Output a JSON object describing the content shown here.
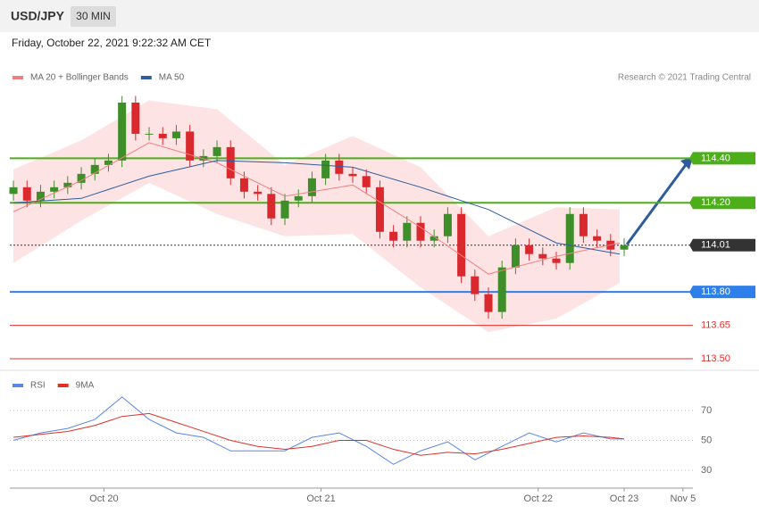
{
  "header": {
    "symbol": "USD/JPY",
    "interval": "30 MIN",
    "timestamp": "Friday, October 22, 2021 9:22:32 AM CET",
    "credit": "Research © 2021 Trading Central"
  },
  "chart_data": [
    {
      "type": "candlestick",
      "x": [
        0,
        3,
        6,
        9,
        12,
        15,
        18,
        21,
        24,
        27,
        30,
        33,
        36,
        39,
        42,
        45,
        48,
        51,
        54,
        57,
        60,
        63,
        66,
        69,
        72,
        75,
        78,
        81,
        84,
        87,
        90,
        93,
        96,
        99,
        102,
        105,
        108,
        111,
        114,
        117,
        120,
        123,
        126,
        129,
        132,
        135
      ],
      "open": [
        114.24,
        114.27,
        114.21,
        114.25,
        114.27,
        114.29,
        114.33,
        114.37,
        114.39,
        114.65,
        114.51,
        114.51,
        114.49,
        114.52,
        114.39,
        114.41,
        114.45,
        114.31,
        114.25,
        114.24,
        114.13,
        114.21,
        114.23,
        114.31,
        114.39,
        114.33,
        114.32,
        114.27,
        114.07,
        114.03,
        114.11,
        114.03,
        114.05,
        114.15,
        113.87,
        113.79,
        113.71,
        113.91,
        114.01,
        113.97,
        113.95,
        113.93,
        114.15,
        114.05,
        114.03,
        113.99
      ],
      "high": [
        114.3,
        114.3,
        114.28,
        114.3,
        114.32,
        114.36,
        114.4,
        114.42,
        114.68,
        114.68,
        114.54,
        114.54,
        114.55,
        114.55,
        114.44,
        114.48,
        114.48,
        114.34,
        114.28,
        114.27,
        114.24,
        114.26,
        114.34,
        114.42,
        114.42,
        114.36,
        114.35,
        114.3,
        114.1,
        114.14,
        114.14,
        114.08,
        114.18,
        114.18,
        113.9,
        113.82,
        113.94,
        114.04,
        114.04,
        114,
        113.98,
        114.18,
        114.18,
        114.08,
        114.06,
        114.04
      ],
      "low": [
        114.21,
        114.18,
        114.18,
        114.22,
        114.24,
        114.26,
        114.3,
        114.34,
        114.36,
        114.48,
        114.48,
        114.46,
        114.46,
        114.36,
        114.36,
        114.38,
        114.28,
        114.22,
        114.21,
        114.1,
        114.1,
        114.18,
        114.2,
        114.28,
        114.3,
        114.29,
        114.24,
        114.04,
        114,
        114,
        114,
        114,
        114.02,
        113.84,
        113.76,
        113.68,
        113.68,
        113.88,
        113.94,
        113.92,
        113.9,
        113.9,
        114.02,
        114,
        113.96,
        113.96
      ],
      "close": [
        114.27,
        114.21,
        114.25,
        114.27,
        114.29,
        114.33,
        114.37,
        114.39,
        114.65,
        114.51,
        114.51,
        114.49,
        114.52,
        114.39,
        114.41,
        114.45,
        114.31,
        114.25,
        114.24,
        114.13,
        114.21,
        114.23,
        114.31,
        114.39,
        114.33,
        114.32,
        114.27,
        114.07,
        114.03,
        114.11,
        114.03,
        114.05,
        114.15,
        113.87,
        113.79,
        113.71,
        113.91,
        114.01,
        113.97,
        113.95,
        113.93,
        114.15,
        114.05,
        114.03,
        113.99,
        114.01
      ],
      "up_color": "#3e8e2a",
      "down_color": "#d9292f",
      "series": [
        {
          "name": "MA 20 + Bollinger Bands",
          "color": "#f08080",
          "band_color": "#fde3e3",
          "x": [
            0,
            15,
            30,
            45,
            60,
            75,
            90,
            105,
            120,
            134
          ],
          "values": [
            114.16,
            114.3,
            114.47,
            114.38,
            114.23,
            114.28,
            114.09,
            113.88,
            113.96,
            114.02
          ],
          "upper": [
            114.35,
            114.48,
            114.66,
            114.62,
            114.37,
            114.5,
            114.36,
            114.05,
            114.18,
            114.17
          ],
          "lower": [
            113.93,
            114.12,
            114.29,
            114.15,
            114.05,
            114.06,
            113.82,
            113.62,
            113.68,
            113.84
          ]
        },
        {
          "name": "MA 50",
          "color": "#2e5c9e",
          "x": [
            0,
            15,
            30,
            45,
            60,
            75,
            90,
            105,
            120,
            134
          ],
          "values": [
            114.2,
            114.22,
            114.32,
            114.39,
            114.38,
            114.36,
            114.27,
            114.17,
            114.02,
            113.97
          ]
        }
      ],
      "levels": [
        {
          "value": 114.4,
          "label": "114.40",
          "color": "#4caf1a",
          "boxed": true,
          "dashed": false
        },
        {
          "value": 114.2,
          "label": "114.20",
          "color": "#4caf1a",
          "boxed": true,
          "dashed": false
        },
        {
          "value": 114.01,
          "label": "114.01",
          "color": "#333333",
          "boxed": true,
          "dashed": true
        },
        {
          "value": 113.8,
          "label": "113.80",
          "color": "#2f7fea",
          "boxed": true,
          "dashed": false
        },
        {
          "value": 113.65,
          "label": "113.65",
          "color": "#e0302a",
          "boxed": false,
          "dashed": false
        },
        {
          "value": 113.5,
          "label": "113.50",
          "color": "#e0302a",
          "boxed": false,
          "dashed": false
        }
      ],
      "xlim": [
        -0.8,
        150.2
      ],
      "ylim": [
        113.46,
        114.71
      ]
    },
    {
      "type": "line",
      "series": [
        {
          "name": "RSI",
          "color": "#5b86e5",
          "x": [
            0,
            6,
            12,
            18,
            24,
            30,
            36,
            42,
            48,
            54,
            60,
            66,
            72,
            78,
            84,
            90,
            96,
            102,
            108,
            114,
            120,
            126,
            132,
            135
          ],
          "values": [
            50,
            55,
            58,
            64,
            79,
            64,
            55,
            52,
            43,
            43,
            43,
            52,
            55,
            46,
            34,
            43,
            49,
            37,
            46,
            55,
            49,
            55,
            51,
            51
          ]
        },
        {
          "name": "9MA",
          "color": "#e0302a",
          "x": [
            0,
            6,
            12,
            18,
            24,
            30,
            36,
            42,
            48,
            54,
            60,
            66,
            72,
            78,
            84,
            90,
            96,
            102,
            108,
            114,
            120,
            126,
            132,
            135
          ],
          "values": [
            52,
            54,
            56,
            60,
            66,
            68,
            62,
            56,
            50,
            46,
            44,
            46,
            50,
            50,
            44,
            40,
            42,
            41,
            44,
            48,
            52,
            53,
            52,
            51
          ]
        }
      ],
      "xlim": [
        -0.8,
        150.2
      ],
      "ylim": [
        20,
        90
      ],
      "yticks": [
        30,
        50,
        70
      ],
      "xticks": [
        {
          "value": 20,
          "label": "Oct 20"
        },
        {
          "value": 68,
          "label": "Oct 21"
        },
        {
          "value": 116,
          "label": "Oct 22"
        },
        {
          "value": 135,
          "label": "Oct 23"
        },
        {
          "value": 148,
          "label": "Nov 5"
        }
      ]
    }
  ]
}
